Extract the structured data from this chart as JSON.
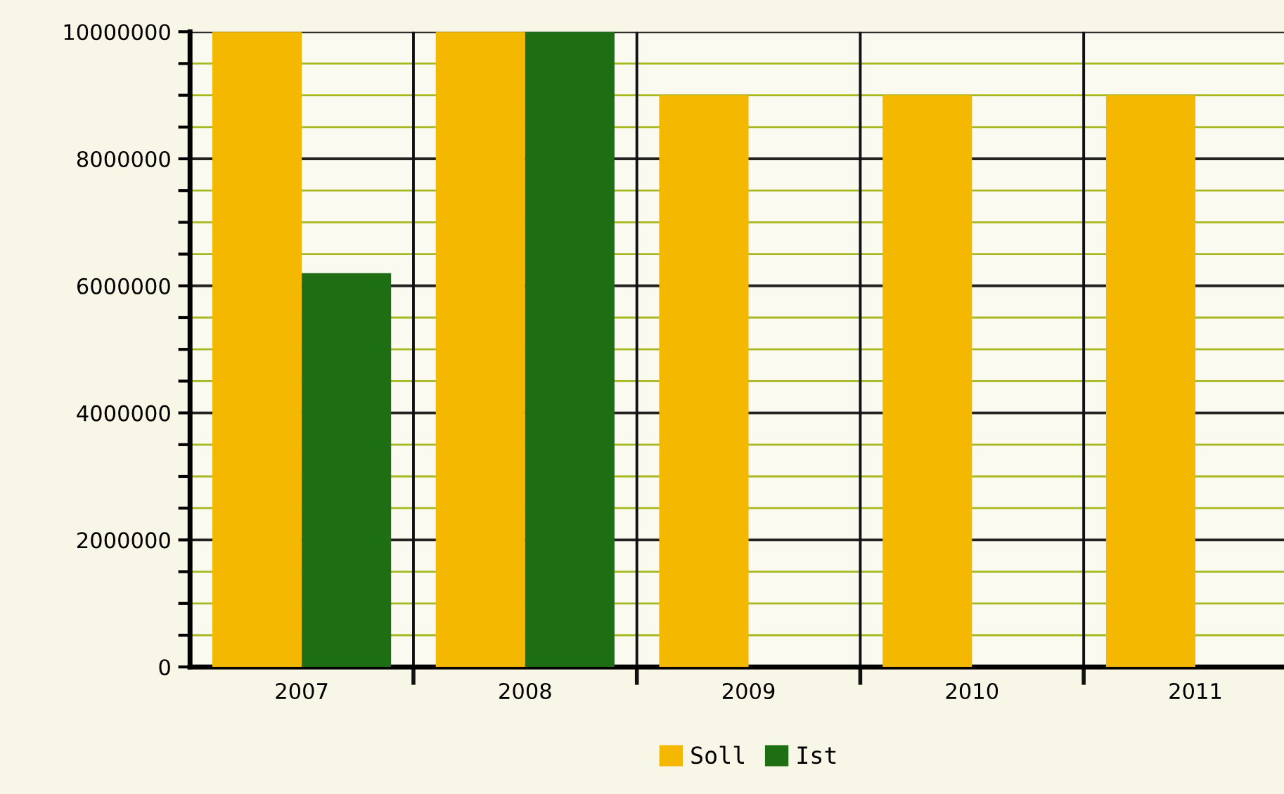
{
  "chart_data": {
    "type": "bar",
    "categories": [
      "2007",
      "2008",
      "2009",
      "2010",
      "2011"
    ],
    "series": [
      {
        "name": "Soll",
        "color": "#f5b800",
        "values": [
          10000000,
          10000000,
          9000000,
          9000000,
          9000000
        ]
      },
      {
        "name": "Ist",
        "color": "#1e6e14",
        "values": [
          6200000,
          10000000,
          null,
          null,
          null
        ]
      }
    ],
    "ylim": [
      0,
      10000000
    ],
    "yticks": [
      0,
      {
        "value": 500000,
        "label": null
      },
      {
        "value": 1000000,
        "label": null
      },
      {
        "value": 1500000,
        "label": null
      },
      2000000,
      {
        "value": 2500000,
        "label": null
      },
      {
        "value": 3000000,
        "label": null
      },
      {
        "value": 3500000,
        "label": null
      },
      4000000,
      {
        "value": 4500000,
        "label": null
      },
      {
        "value": 5000000,
        "label": null
      },
      {
        "value": 5500000,
        "label": null
      },
      6000000,
      {
        "value": 6500000,
        "label": null
      },
      {
        "value": 7000000,
        "label": null
      },
      {
        "value": 7500000,
        "label": null
      },
      8000000,
      {
        "value": 8500000,
        "label": null
      },
      {
        "value": 9000000,
        "label": null
      },
      {
        "value": 9500000,
        "label": null
      },
      10000000
    ],
    "grid": true,
    "legend": "bottom"
  }
}
